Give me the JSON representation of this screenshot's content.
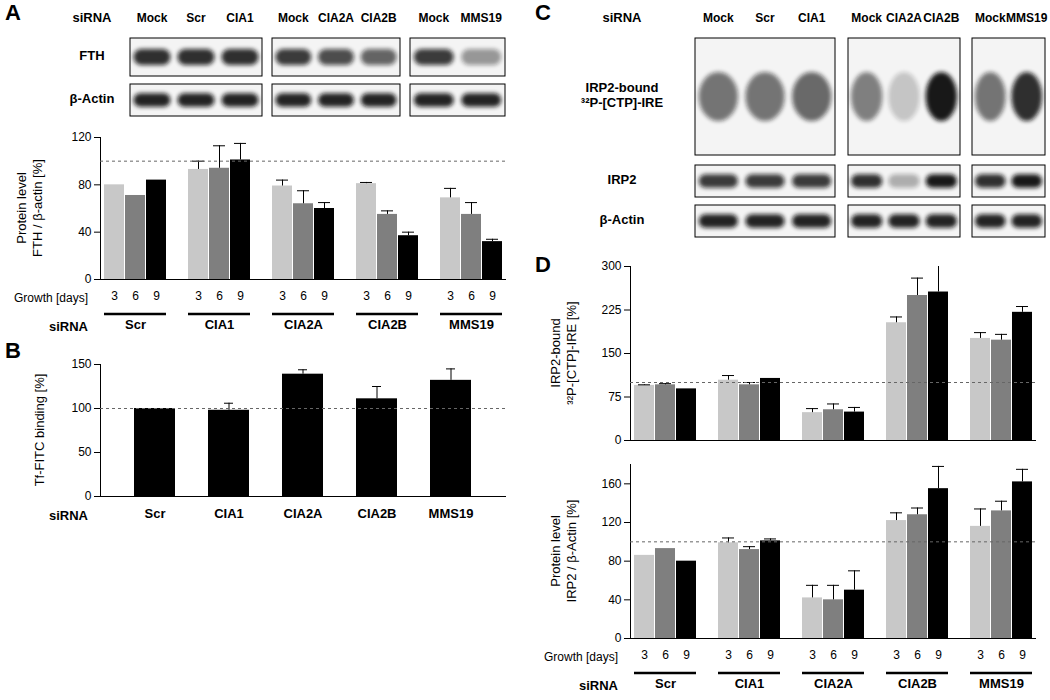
{
  "blots": [
    {
      "panel": "A",
      "label": "siRNA",
      "groups": [
        [
          "Mock",
          "Scr",
          "CIA1"
        ],
        [
          "Mock",
          "CIA2A",
          "CIA2B"
        ],
        [
          "Mock",
          "MMS19"
        ]
      ],
      "rows": [
        {
          "name": "FTH",
          "band_intensity": [
            [
              0.85,
              0.85,
              0.85
            ],
            [
              0.8,
              0.72,
              0.62
            ],
            [
              0.8,
              0.4
            ]
          ]
        },
        {
          "name": "β-Actin",
          "band_intensity": [
            [
              0.9,
              0.9,
              0.9
            ],
            [
              0.9,
              0.9,
              0.9
            ],
            [
              0.9,
              0.9
            ]
          ]
        }
      ]
    },
    {
      "panel": "C",
      "label": "siRNA",
      "groups": [
        [
          "Mock",
          "Scr",
          "CIA1"
        ],
        [
          "Mock",
          "CIA2A",
          "CIA2B"
        ],
        [
          "Mock",
          "MMS19"
        ]
      ],
      "rows": [
        {
          "name": "IRP2-bound ³²P-[CTP]-IRE",
          "band_intensity": [
            [
              0.55,
              0.55,
              0.6
            ],
            [
              0.5,
              0.2,
              0.95
            ],
            [
              0.55,
              0.85
            ]
          ]
        },
        {
          "name": "IRP2",
          "band_intensity": [
            [
              0.8,
              0.8,
              0.8
            ],
            [
              0.85,
              0.3,
              0.95
            ],
            [
              0.85,
              0.95
            ]
          ]
        },
        {
          "name": "β-Actin",
          "band_intensity": [
            [
              0.9,
              0.9,
              0.9
            ],
            [
              0.9,
              0.9,
              0.9
            ],
            [
              0.9,
              0.9
            ]
          ]
        }
      ]
    }
  ],
  "chart_data": [
    {
      "panel": "A",
      "type": "bar",
      "y_label": "Protein level FTH / β-actin [%]",
      "x_label": "Growth [days]",
      "group_label": "siRNA",
      "categories": [
        "Scr",
        "CIA1",
        "CIA2A",
        "CIA2B",
        "MMS19"
      ],
      "series": [
        {
          "name": "3",
          "color": "#c8c8c8",
          "values": [
            80,
            93,
            79,
            81,
            69
          ],
          "errors": [
            null,
            7,
            5,
            1,
            8
          ]
        },
        {
          "name": "6",
          "color": "#7f7f7f",
          "values": [
            71,
            94,
            64,
            55,
            55
          ],
          "errors": [
            null,
            19,
            11,
            3,
            10
          ]
        },
        {
          "name": "9",
          "color": "#000000",
          "values": [
            84,
            101,
            60,
            37,
            32
          ],
          "errors": [
            null,
            14,
            5,
            3,
            2
          ]
        }
      ],
      "reference": 100,
      "ylim": [
        0,
        120
      ],
      "yticks": [
        0,
        40,
        80,
        120
      ]
    },
    {
      "panel": "B",
      "type": "bar",
      "y_label": "Tf-FITC binding [%]",
      "group_label": "siRNA",
      "categories": [
        "Scr",
        "CIA1",
        "CIA2A",
        "CIA2B",
        "MMS19"
      ],
      "values": [
        100,
        98,
        139,
        111,
        132
      ],
      "errors": [
        null,
        8,
        5,
        14,
        13
      ],
      "color": "#000000",
      "reference": 100,
      "ylim": [
        0,
        150
      ],
      "yticks": [
        0,
        50,
        100,
        150
      ]
    },
    {
      "panel": "D",
      "type": "bar",
      "y_label": "IRP2-bound ³²P-[CTP]-IRE [%]",
      "categories": [
        "Scr",
        "CIA1",
        "CIA2A",
        "CIA2B",
        "MMS19"
      ],
      "series": [
        {
          "name": "3",
          "color": "#c8c8c8",
          "values": [
            95,
            104,
            48,
            203,
            176
          ],
          "errors": [
            1,
            8,
            7,
            10,
            10
          ]
        },
        {
          "name": "6",
          "color": "#7f7f7f",
          "values": [
            96,
            96,
            53,
            250,
            173
          ],
          "errors": [
            2,
            4,
            10,
            30,
            10
          ]
        },
        {
          "name": "9",
          "color": "#000000",
          "values": [
            89,
            107,
            49,
            256,
            221
          ],
          "errors": [
            null,
            null,
            8,
            57,
            10
          ]
        }
      ],
      "reference": 100,
      "tick_labels": "y",
      "ylim": [
        0,
        300
      ],
      "yticks": [
        0,
        75,
        150,
        225,
        300
      ]
    },
    {
      "type": "bar",
      "y_label": "Protein level IRP2 / β-Actin [%]",
      "x_label": "Growth [days]",
      "group_label": "siRNA",
      "categories": [
        "Scr",
        "CIA1",
        "CIA2A",
        "CIA2B",
        "MMS19"
      ],
      "series": [
        {
          "name": "3",
          "color": "#c8c8c8",
          "values": [
            86,
            99,
            42,
            122,
            116
          ],
          "errors": [
            null,
            5,
            13,
            8,
            18
          ]
        },
        {
          "name": "6",
          "color": "#7f7f7f",
          "values": [
            93,
            92,
            40,
            128,
            132
          ],
          "errors": [
            null,
            3,
            15,
            7,
            10
          ]
        },
        {
          "name": "9",
          "color": "#000000",
          "values": [
            80,
            101,
            50,
            155,
            162
          ],
          "errors": [
            null,
            2,
            20,
            23,
            13
          ]
        }
      ],
      "reference": 100,
      "ylim": [
        0,
        180
      ],
      "yticks": [
        0,
        40,
        80,
        120,
        160
      ]
    }
  ]
}
